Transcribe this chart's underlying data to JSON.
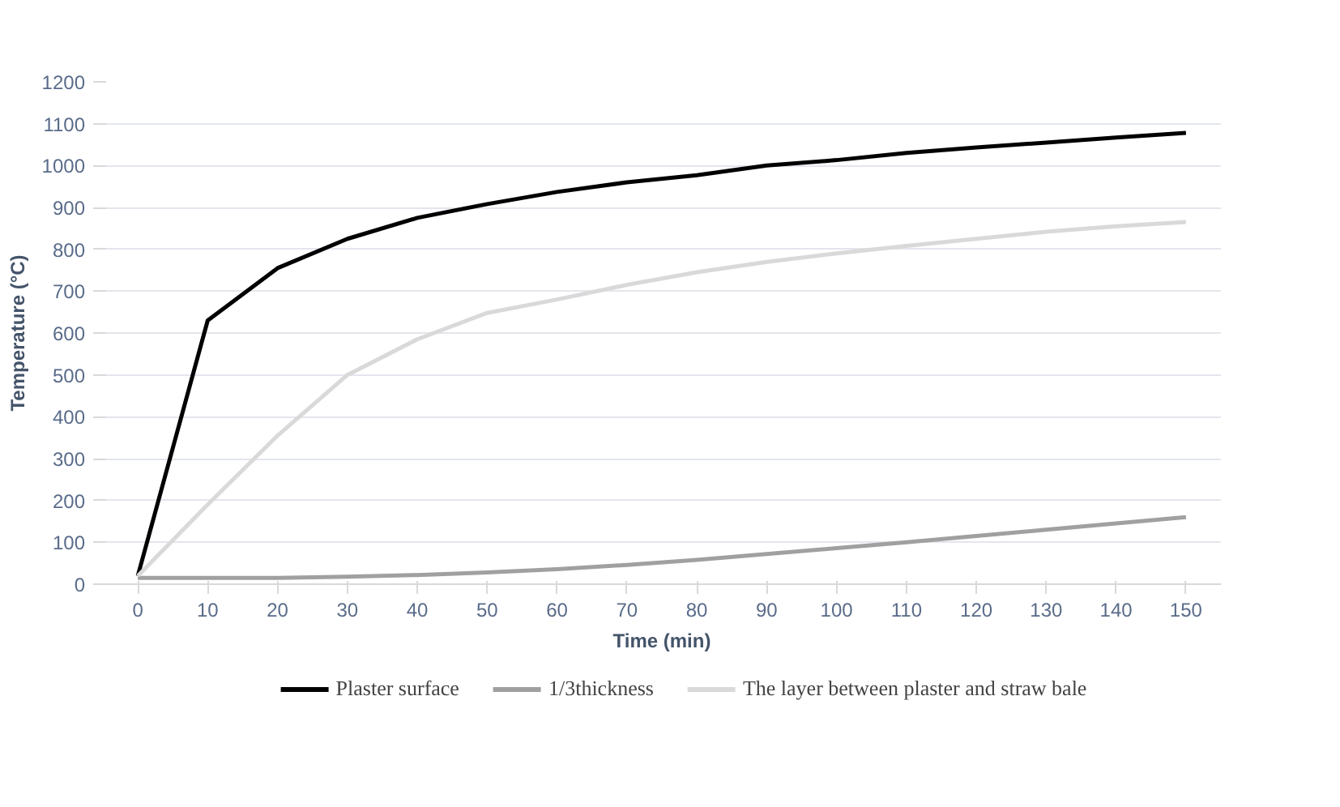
{
  "chart_data": {
    "type": "line",
    "xlabel": "Time (min)",
    "ylabel": "Temperature (°C)",
    "x": [
      0,
      10,
      20,
      30,
      40,
      50,
      60,
      70,
      80,
      90,
      100,
      110,
      120,
      130,
      140,
      150
    ],
    "series": [
      {
        "name": "Plaster surface",
        "color": "#000000",
        "values": [
          20,
          630,
          755,
          825,
          875,
          908,
          937,
          960,
          977,
          1000,
          1013,
          1030,
          1043,
          1055,
          1067,
          1078
        ]
      },
      {
        "name": "1/3thickness",
        "color": "#a0a0a0",
        "values": [
          15,
          15,
          15,
          18,
          22,
          28,
          36,
          46,
          58,
          72,
          86,
          100,
          115,
          130,
          145,
          160
        ]
      },
      {
        "name": "The layer between plaster and straw bale",
        "color": "#d9d9d9",
        "values": [
          20,
          190,
          355,
          500,
          585,
          648,
          680,
          715,
          745,
          770,
          790,
          808,
          825,
          842,
          855,
          865
        ]
      }
    ],
    "xlim": [
      -5,
      155
    ],
    "xticks": [
      0,
      10,
      20,
      30,
      40,
      50,
      60,
      70,
      80,
      90,
      100,
      110,
      120,
      130,
      140,
      150
    ],
    "ylim": [
      0,
      1200
    ],
    "yticks": [
      0,
      100,
      200,
      300,
      400,
      500,
      600,
      700,
      800,
      900,
      1000,
      1100,
      1200
    ],
    "grid": "y",
    "legend": "bottom",
    "marker": "none",
    "line_style": "solid"
  }
}
